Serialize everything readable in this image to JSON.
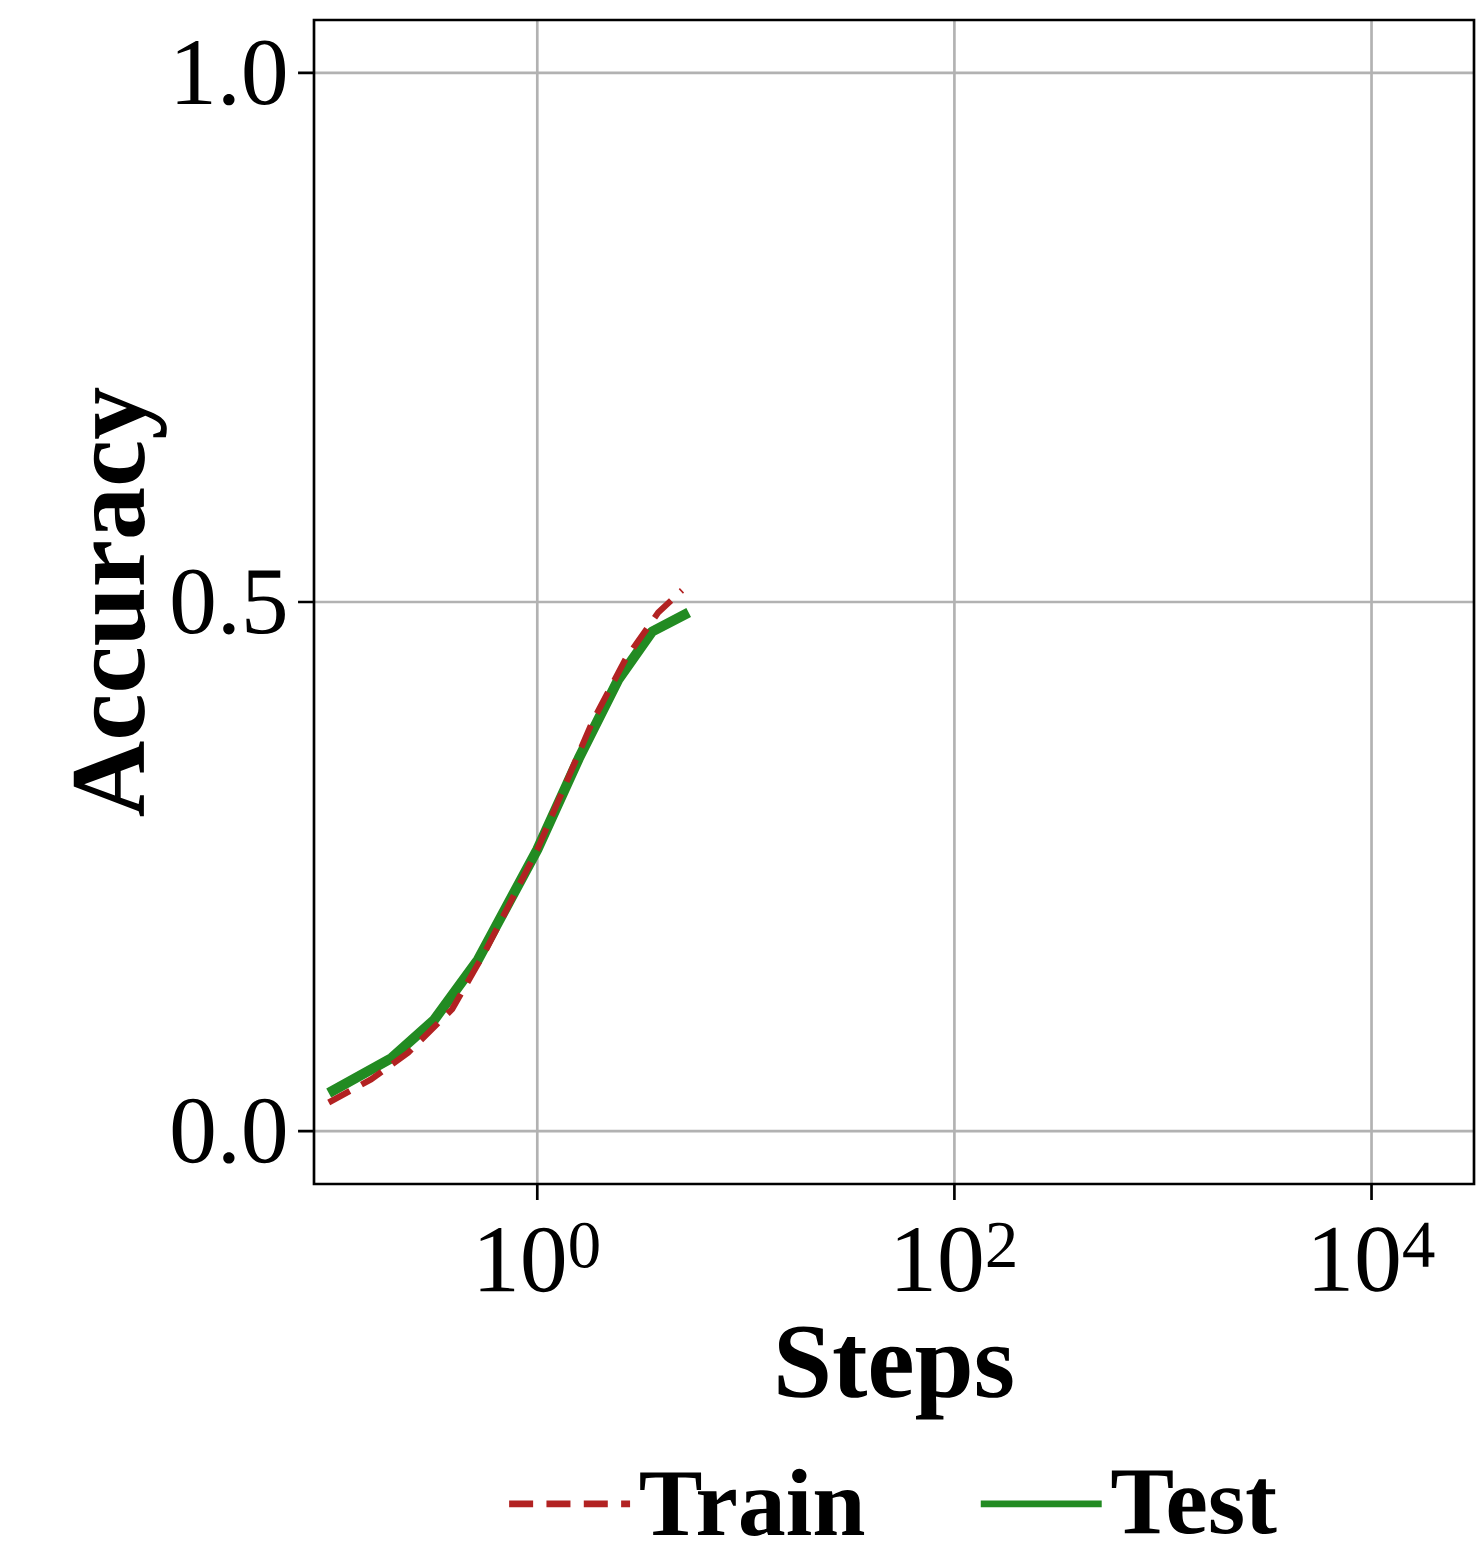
{
  "chart_data": {
    "type": "line",
    "xlabel": "Steps",
    "ylabel": "Accuracy",
    "log": "x",
    "grid": true,
    "legend": "bottom",
    "xlim": [
      0.085,
      31000
    ],
    "ylim": [
      -0.05,
      1.05
    ],
    "xticks": [
      {
        "value": 1,
        "label": "10$^{0}$"
      },
      {
        "value": 100,
        "label": "10$^{2}$"
      },
      {
        "value": 10000,
        "label": "10$^{4}$"
      }
    ],
    "yticks": [
      {
        "value": 0,
        "label": "0.0"
      },
      {
        "value": 0.5,
        "label": "0.5"
      },
      {
        "value": 1,
        "label": "1.0"
      }
    ],
    "series": [
      {
        "name": "Train",
        "color": "#b22222",
        "line_style": "dashed",
        "x": [
          0.1,
          0.16,
          0.24,
          0.39,
          0.56,
          1,
          1.83,
          2.65,
          3.8,
          4.94
        ],
        "values": [
          0.027,
          0.049,
          0.074,
          0.115,
          0.169,
          0.266,
          0.386,
          0.446,
          0.49,
          0.511
        ]
      },
      {
        "name": "Test",
        "color": "#228b22",
        "line_style": "solid",
        "x": [
          0.1,
          0.2,
          0.32,
          0.52,
          1,
          1.58,
          2.45,
          3.55,
          5.32
        ],
        "values": [
          0.036,
          0.069,
          0.105,
          0.162,
          0.266,
          0.352,
          0.427,
          0.472,
          0.49
        ]
      }
    ]
  }
}
